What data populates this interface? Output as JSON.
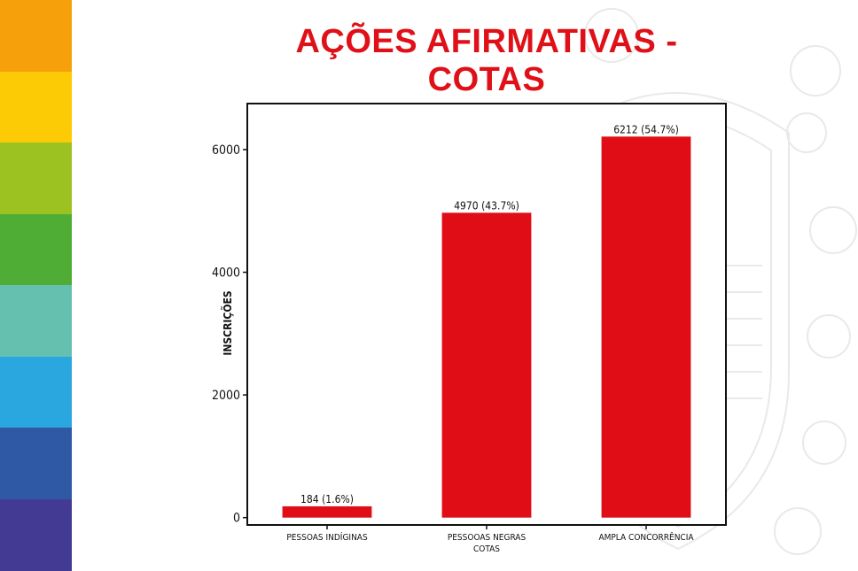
{
  "page": {
    "title": "AÇÕES AFIRMATIVAS - COTAS"
  },
  "colors": {
    "stripes": [
      "#f6a10b",
      "#fdcb05",
      "#9cc221",
      "#4fac34",
      "#66c0b0",
      "#2ba7e0",
      "#2f58a5",
      "#433b93"
    ],
    "bar": "#e00d16",
    "title": "#e01018"
  },
  "chart_data": {
    "type": "bar",
    "title": "",
    "xlabel": "",
    "ylabel": "INSCRIÇÕES",
    "ylim": [
      -120,
      6750
    ],
    "yticks": [
      0,
      2000,
      4000,
      6000
    ],
    "categories": [
      [
        "PESSOAS INDÍGINAS"
      ],
      [
        "PESSOOAS NEGRAS",
        "COTAS"
      ],
      [
        "AMPLA CONCORRÊNCIA"
      ]
    ],
    "values": [
      184,
      4970,
      6212
    ],
    "data_labels": [
      "184 (1.6%)",
      "4970 (43.7%)",
      "6212 (54.7%)"
    ],
    "grid": false,
    "legend": "none"
  }
}
